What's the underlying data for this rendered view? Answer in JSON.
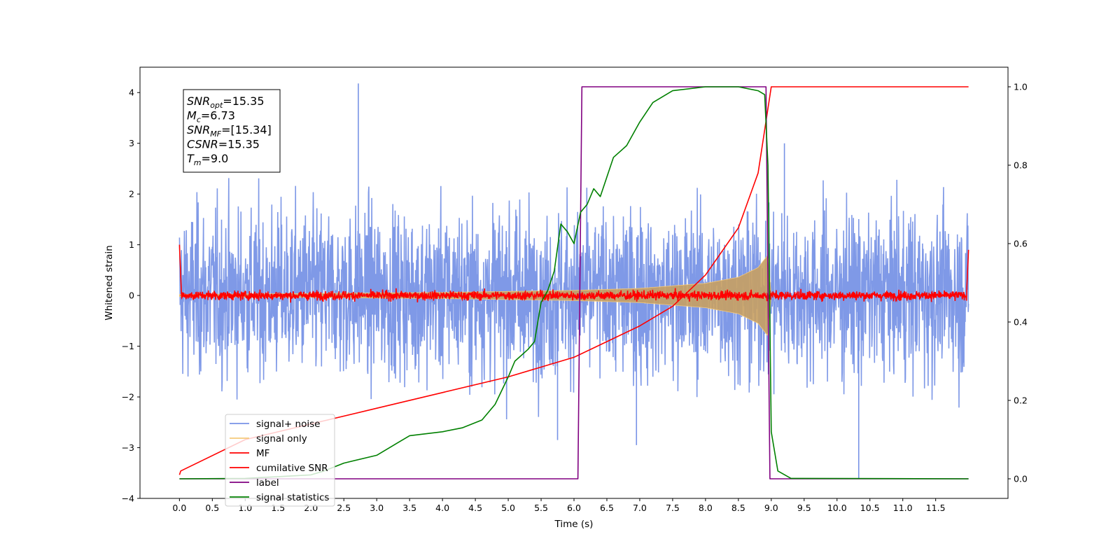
{
  "chart_data": {
    "type": "line",
    "xlabel": "Time (s)",
    "ylabel": "Whitened strain",
    "xlim": [
      -0.6,
      12.6
    ],
    "ylim": [
      -4,
      4.5
    ],
    "y2lim": [
      -0.05,
      1.05
    ],
    "x_ticks": [
      0.0,
      0.5,
      1.0,
      1.5,
      2.0,
      2.5,
      3.0,
      3.5,
      4.0,
      4.5,
      5.0,
      5.5,
      6.0,
      6.5,
      7.0,
      7.5,
      8.0,
      8.5,
      9.0,
      9.5,
      10.0,
      10.5,
      11.0,
      11.5
    ],
    "x_tick_labels": [
      "0.0",
      "0.5",
      "1.0",
      "1.5",
      "2.0",
      "2.5",
      "3.0",
      "3.5",
      "4.0",
      "4.5",
      "5.0",
      "5.5",
      "6.0",
      "6.5",
      "7.0",
      "7.5",
      "8.0",
      "8.5",
      "9.0",
      "9.5",
      "10.0",
      "10.5",
      "11.0",
      "11.5"
    ],
    "y_ticks": [
      -4,
      -3,
      -2,
      -1,
      0,
      1,
      2,
      3,
      4
    ],
    "y_tick_labels": [
      "−4",
      "−3",
      "−2",
      "−1",
      "0",
      "1",
      "2",
      "3",
      "4"
    ],
    "y2_ticks": [
      0.0,
      0.2,
      0.4,
      0.6,
      0.8,
      1.0
    ],
    "y2_tick_labels": [
      "0.0",
      "0.2",
      "0.4",
      "0.6",
      "0.8",
      "1.0"
    ],
    "grid": false,
    "legend_position": "bottom-left",
    "annotation": [
      {
        "sym": "SNR",
        "sub": "opt",
        "rest": "=15.35"
      },
      {
        "sym": "M",
        "sub": "c",
        "rest": "=6.73"
      },
      {
        "sym": "SNR",
        "sub": "MF",
        "rest": "=[15.34]"
      },
      {
        "sym": "CSNR",
        "sub": "",
        "rest": "=15.35"
      },
      {
        "sym": "T",
        "sub": "m",
        "rest": "=9.0"
      }
    ],
    "series": [
      {
        "name": "signal+ noise",
        "axis": "left",
        "color": "#7893e6",
        "note": "noise band approx between -2.4 and 2.6 with spikes",
        "spikes": [
          [
            2.72,
            4.18
          ],
          [
            10.33,
            -3.62
          ],
          [
            5.75,
            -2.85
          ],
          [
            9.2,
            3.0
          ],
          [
            6.95,
            -2.95
          ]
        ]
      },
      {
        "name": "signal only",
        "axis": "left",
        "color": "#f5c97a",
        "envelope_x": [
          0.0,
          2.0,
          4.0,
          6.0,
          7.0,
          8.0,
          8.5,
          8.8,
          8.95,
          9.0
        ],
        "envelope_y": [
          0.02,
          0.04,
          0.06,
          0.1,
          0.14,
          0.24,
          0.36,
          0.55,
          0.8,
          0.0
        ]
      },
      {
        "name": "MF",
        "axis": "left",
        "color": "#ff0000",
        "note": "noisy around 0, amplitude about 0.1, edge spikes at 0.0 and 12.0",
        "edges": [
          [
            0.0,
            1.0
          ],
          [
            12.0,
            0.9
          ]
        ]
      },
      {
        "name": "cumilative SNR",
        "axis": "right",
        "color": "#ff0000",
        "x": [
          0.0,
          0.02,
          1.0,
          2.0,
          3.0,
          4.0,
          5.0,
          6.0,
          6.5,
          7.0,
          7.5,
          8.0,
          8.5,
          8.8,
          9.0,
          12.0
        ],
        "y": [
          0.01,
          0.02,
          0.1,
          0.14,
          0.18,
          0.22,
          0.26,
          0.31,
          0.35,
          0.39,
          0.44,
          0.52,
          0.64,
          0.78,
          1.0,
          1.0
        ]
      },
      {
        "name": "label",
        "axis": "right",
        "color": "#800080",
        "x": [
          0.0,
          6.06,
          6.12,
          8.92,
          8.98,
          12.0
        ],
        "y": [
          0.0,
          0.0,
          1.0,
          1.0,
          0.0,
          0.0
        ]
      },
      {
        "name": "signal statistics",
        "axis": "right",
        "color": "#008000",
        "x": [
          0.0,
          1.0,
          2.0,
          2.2,
          2.5,
          3.0,
          3.3,
          3.5,
          4.0,
          4.3,
          4.6,
          4.8,
          5.0,
          5.1,
          5.3,
          5.4,
          5.5,
          5.6,
          5.7,
          5.8,
          5.9,
          6.0,
          6.1,
          6.2,
          6.3,
          6.4,
          6.5,
          6.6,
          6.8,
          6.9,
          7.0,
          7.2,
          7.5,
          8.0,
          8.5,
          8.8,
          8.9,
          8.95,
          9.0,
          9.1,
          9.3,
          12.0
        ],
        "y": [
          0.0,
          0.001,
          0.01,
          0.02,
          0.04,
          0.06,
          0.09,
          0.11,
          0.12,
          0.13,
          0.15,
          0.19,
          0.26,
          0.3,
          0.33,
          0.35,
          0.45,
          0.48,
          0.53,
          0.65,
          0.63,
          0.6,
          0.68,
          0.7,
          0.74,
          0.72,
          0.77,
          0.82,
          0.85,
          0.88,
          0.91,
          0.96,
          0.99,
          1.0,
          1.0,
          0.99,
          0.98,
          0.8,
          0.12,
          0.02,
          0.001,
          0.0
        ]
      }
    ]
  }
}
